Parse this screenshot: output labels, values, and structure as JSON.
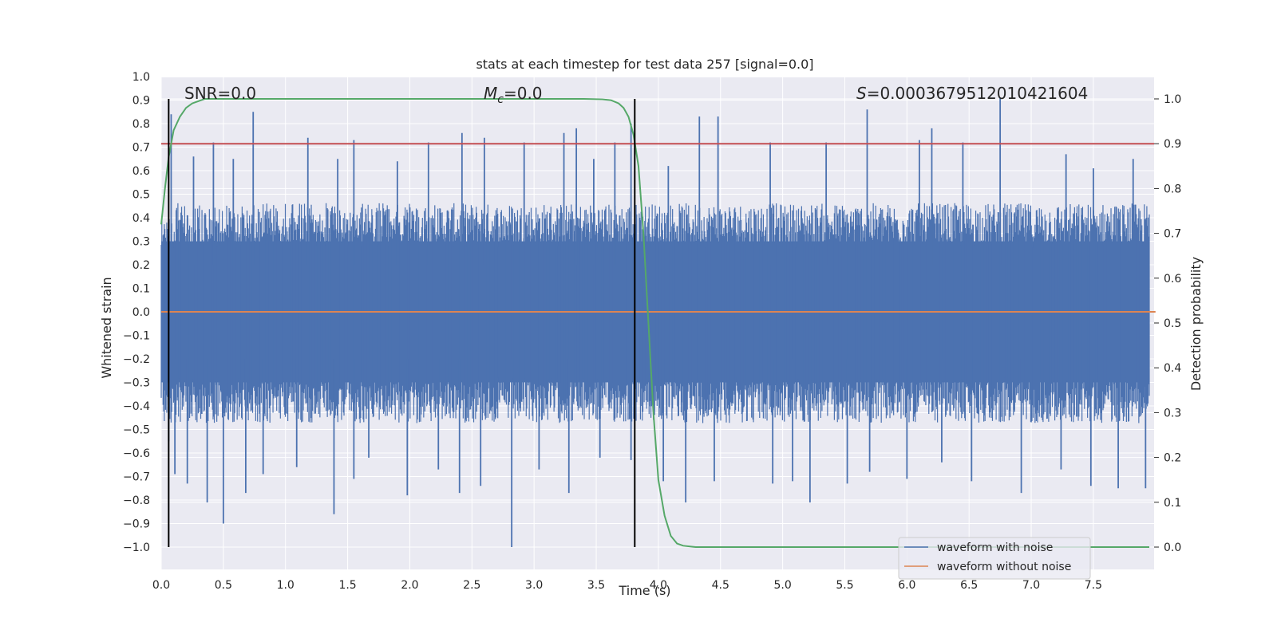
{
  "chart_data": {
    "type": "line",
    "title": "stats at each timestep for test data 257 [signal=0.0]",
    "xlabel": "Time (s)",
    "ylabel": "Whitened strain",
    "y2label": "Detection probability",
    "xlim": [
      0.0,
      8.0
    ],
    "ylim": [
      -1.09,
      1.0
    ],
    "y2lim": [
      -0.05,
      1.05
    ],
    "x_ticks": [
      0.0,
      0.5,
      1.0,
      1.5,
      2.0,
      2.5,
      3.0,
      3.5,
      4.0,
      4.5,
      5.0,
      5.5,
      6.0,
      6.5,
      7.0,
      7.5
    ],
    "x_tick_labels": [
      "0.0",
      "0.5",
      "1.0",
      "1.5",
      "2.0",
      "2.5",
      "3.0",
      "3.5",
      "4.0",
      "4.5",
      "5.0",
      "5.5",
      "6.0",
      "6.5",
      "7.0",
      "7.5"
    ],
    "y_ticks": [
      1.0,
      0.9,
      0.8,
      0.7,
      0.6,
      0.5,
      0.4,
      0.3,
      0.2,
      0.1,
      0.0,
      -0.1,
      -0.2,
      -0.3,
      -0.4,
      -0.5,
      -0.6,
      -0.7,
      -0.8,
      -0.9,
      -1.0
    ],
    "y_tick_labels": [
      "1.0",
      "0.9",
      "0.8",
      "0.7",
      "0.6",
      "0.5",
      "0.4",
      "0.3",
      "0.2",
      "0.1",
      "0.0",
      "−0.1",
      "−0.2",
      "−0.3",
      "−0.4",
      "−0.5",
      "−0.6",
      "−0.7",
      "−0.8",
      "−0.9",
      "−1.0"
    ],
    "y2_ticks": [
      1.0,
      0.9,
      0.8,
      0.7,
      0.6,
      0.5,
      0.4,
      0.3,
      0.2,
      0.1,
      0.0
    ],
    "y2_tick_labels": [
      "1.0",
      "0.9",
      "0.8",
      "0.7",
      "0.6",
      "0.5",
      "0.4",
      "0.3",
      "0.2",
      "0.1",
      "0.0"
    ],
    "grid": true,
    "legend_position": "lower-right",
    "annotations": {
      "snr": "SNR=0.0",
      "mc": "M",
      "mc_sub": "c",
      "mc_val": "=0.0",
      "s": "S",
      "s_val": "=0.0003679512010421604"
    },
    "colors": {
      "background": "#eaeaf2",
      "grid": "#ffffff",
      "noise": "#4c72b0",
      "clean": "#dd8452",
      "probability": "#55a868",
      "threshold": "#c44e52",
      "vline": "#000000"
    },
    "series": [
      {
        "name": "waveform with noise",
        "axis": "left",
        "style": "noise-band",
        "band_typical": [
          -0.43,
          0.42
        ],
        "peaks_positive": [
          [
            0.08,
            0.84
          ],
          [
            0.26,
            0.66
          ],
          [
            0.42,
            0.72
          ],
          [
            0.58,
            0.65
          ],
          [
            0.74,
            0.85
          ],
          [
            1.18,
            0.74
          ],
          [
            1.42,
            0.65
          ],
          [
            1.55,
            0.73
          ],
          [
            1.9,
            0.64
          ],
          [
            2.15,
            0.72
          ],
          [
            2.42,
            0.76
          ],
          [
            2.6,
            0.74
          ],
          [
            2.92,
            0.72
          ],
          [
            3.24,
            0.76
          ],
          [
            3.34,
            0.78
          ],
          [
            3.48,
            0.65
          ],
          [
            3.65,
            0.72
          ],
          [
            3.78,
            0.8
          ],
          [
            4.08,
            0.62
          ],
          [
            4.33,
            0.83
          ],
          [
            4.48,
            0.83
          ],
          [
            4.9,
            0.72
          ],
          [
            5.35,
            0.72
          ],
          [
            5.68,
            0.86
          ],
          [
            6.1,
            0.73
          ],
          [
            6.2,
            0.78
          ],
          [
            6.45,
            0.72
          ],
          [
            6.75,
            0.91
          ],
          [
            7.28,
            0.67
          ],
          [
            7.5,
            0.61
          ],
          [
            7.82,
            0.65
          ]
        ],
        "peaks_negative": [
          [
            0.06,
            -0.55
          ],
          [
            0.11,
            -0.69
          ],
          [
            0.21,
            -0.73
          ],
          [
            0.37,
            -0.81
          ],
          [
            0.5,
            -0.9
          ],
          [
            0.68,
            -0.77
          ],
          [
            0.82,
            -0.69
          ],
          [
            1.09,
            -0.66
          ],
          [
            1.39,
            -0.86
          ],
          [
            1.55,
            -0.71
          ],
          [
            1.67,
            -0.62
          ],
          [
            1.98,
            -0.78
          ],
          [
            2.23,
            -0.67
          ],
          [
            2.4,
            -0.77
          ],
          [
            2.57,
            -0.74
          ],
          [
            2.82,
            -1.0
          ],
          [
            3.04,
            -0.67
          ],
          [
            3.28,
            -0.77
          ],
          [
            3.53,
            -0.62
          ],
          [
            3.78,
            -0.63
          ],
          [
            4.04,
            -0.72
          ],
          [
            4.22,
            -0.81
          ],
          [
            4.45,
            -0.72
          ],
          [
            4.92,
            -0.73
          ],
          [
            5.08,
            -0.72
          ],
          [
            5.22,
            -0.81
          ],
          [
            5.52,
            -0.73
          ],
          [
            5.7,
            -0.68
          ],
          [
            6.0,
            -0.71
          ],
          [
            6.28,
            -0.64
          ],
          [
            6.52,
            -0.72
          ],
          [
            6.92,
            -0.77
          ],
          [
            7.24,
            -0.67
          ],
          [
            7.48,
            -0.74
          ],
          [
            7.7,
            -0.75
          ],
          [
            7.92,
            -0.75
          ]
        ]
      },
      {
        "name": "waveform without noise",
        "axis": "left",
        "x": [
          0.0,
          8.0
        ],
        "y": [
          0.0,
          0.0
        ]
      },
      {
        "axis": "right",
        "x": [
          0.0,
          0.03,
          0.06,
          0.1,
          0.15,
          0.2,
          0.25,
          0.3,
          0.35,
          0.5,
          1.0,
          2.0,
          3.0,
          3.4,
          3.55,
          3.62,
          3.68,
          3.72,
          3.76,
          3.8,
          3.84,
          3.88,
          3.92,
          3.96,
          4.0,
          4.05,
          4.1,
          4.15,
          4.2,
          4.3,
          5.0,
          6.0,
          7.0,
          7.95
        ],
        "y": [
          0.72,
          0.8,
          0.87,
          0.93,
          0.96,
          0.98,
          0.99,
          0.995,
          1.0,
          1.0,
          1.0,
          1.0,
          1.0,
          1.0,
          0.999,
          0.997,
          0.99,
          0.98,
          0.96,
          0.92,
          0.85,
          0.7,
          0.5,
          0.3,
          0.15,
          0.07,
          0.025,
          0.008,
          0.003,
          0.0,
          0.0,
          0.0,
          0.0,
          0.0
        ]
      },
      {
        "axis": "right",
        "x": [
          0.0,
          8.0
        ],
        "y": [
          0.9,
          0.9
        ]
      }
    ],
    "vertical_lines_x": [
      0.06,
      3.81
    ]
  }
}
